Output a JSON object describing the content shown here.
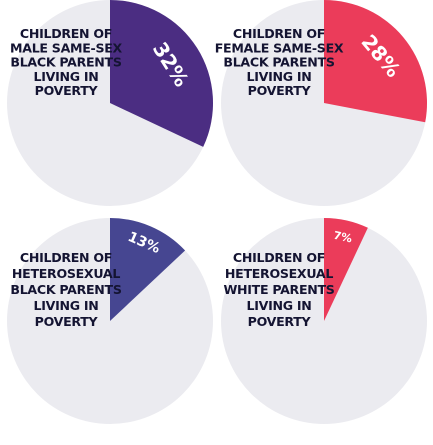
{
  "colors": {
    "track": "#ebebf0",
    "text": "#141432",
    "percent_text": "#ffffff"
  },
  "chart_data": [
    {
      "type": "pie",
      "values": [
        32,
        68
      ],
      "value_label": "32%",
      "color": "#4b2d82",
      "caption_lines": [
        "CHILDREN OF",
        "MALE SAME-SEX",
        "BLACK PARENTS",
        "LIVING IN",
        "POVERTY"
      ]
    },
    {
      "type": "pie",
      "values": [
        28,
        72
      ],
      "value_label": "28%",
      "color": "#eb3c5a",
      "caption_lines": [
        "CHILDREN OF",
        "FEMALE SAME-SEX",
        "BLACK PARENTS",
        "LIVING IN",
        "POVERTY"
      ]
    },
    {
      "type": "pie",
      "values": [
        13,
        87
      ],
      "value_label": "13%",
      "color": "#464691",
      "caption_lines": [
        "CHILDREN OF",
        "HETEROSEXUAL",
        "BLACK PARENTS",
        "LIVING IN",
        "POVERTY"
      ]
    },
    {
      "type": "pie",
      "values": [
        7,
        93
      ],
      "value_label": "7%",
      "color": "#eb3c5a",
      "caption_lines": [
        "CHILDREN OF",
        "HETEROSEXUAL",
        "WHITE PARENTS",
        "LIVING IN",
        "POVERTY"
      ]
    }
  ]
}
